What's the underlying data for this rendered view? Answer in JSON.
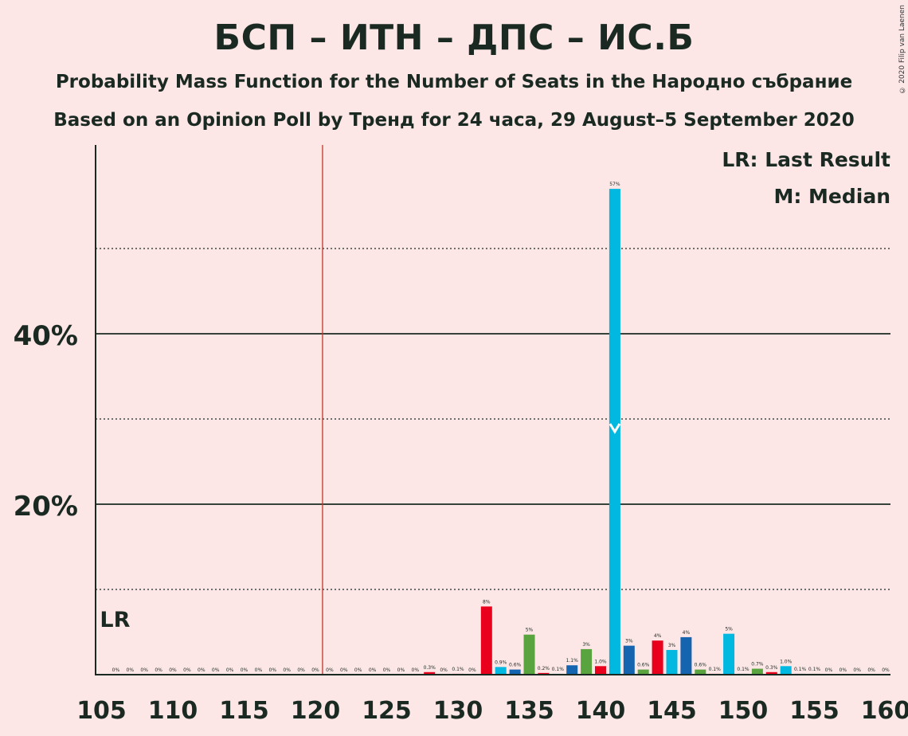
{
  "title": "БСП – ИТН – ДПС – ИС.Б",
  "subtitle1": "Probability Mass Function for the Number of Seats in the Народно събрание",
  "subtitle2": "Based on an Opinion Poll by Тренд for 24 часа, 29 August–5 September 2020",
  "copyright": "© 2020 Filip van Laenen",
  "legend": {
    "last_result": "LR: Last Result",
    "median": "M: Median"
  },
  "colors": {
    "background": "#fde6e6",
    "majority_line": "#c0392b",
    "axis": "#1a2a22",
    "series": [
      "#e8001c",
      "#00b8e0",
      "#1464b0",
      "#5aa440"
    ]
  },
  "chart_data": {
    "type": "bar",
    "xlabel": "",
    "ylabel": "",
    "xlim": [
      105,
      160
    ],
    "ylim": [
      0,
      62
    ],
    "x_ticks": [
      "105",
      "110",
      "115",
      "120",
      "125",
      "130",
      "135",
      "140",
      "145",
      "150",
      "155",
      "160"
    ],
    "y_ticks": [
      "20%",
      "40%"
    ],
    "y_tick_values": [
      20,
      40
    ],
    "solid_gridlines": [
      20,
      40
    ],
    "dotted_gridlines": [
      10,
      30,
      50
    ],
    "majority_line_x": 120.5,
    "last_result_seats": 106,
    "last_result_label": "LR",
    "median_seats": 141,
    "bars": [
      {
        "x": 106,
        "value": 0,
        "label": "0%",
        "color": "#e8001c"
      },
      {
        "x": 107,
        "value": 0,
        "label": "0%",
        "color": "#00b8e0"
      },
      {
        "x": 108,
        "value": 0,
        "label": "0%",
        "color": "#1464b0"
      },
      {
        "x": 109,
        "value": 0,
        "label": "0%",
        "color": "#5aa440"
      },
      {
        "x": 110,
        "value": 0,
        "label": "0%",
        "color": "#e8001c"
      },
      {
        "x": 111,
        "value": 0,
        "label": "0%",
        "color": "#00b8e0"
      },
      {
        "x": 112,
        "value": 0,
        "label": "0%",
        "color": "#1464b0"
      },
      {
        "x": 113,
        "value": 0,
        "label": "0%",
        "color": "#5aa440"
      },
      {
        "x": 114,
        "value": 0,
        "label": "0%",
        "color": "#e8001c"
      },
      {
        "x": 115,
        "value": 0,
        "label": "0%",
        "color": "#00b8e0"
      },
      {
        "x": 116,
        "value": 0,
        "label": "0%",
        "color": "#1464b0"
      },
      {
        "x": 117,
        "value": 0,
        "label": "0%",
        "color": "#5aa440"
      },
      {
        "x": 118,
        "value": 0,
        "label": "0%",
        "color": "#e8001c"
      },
      {
        "x": 119,
        "value": 0,
        "label": "0%",
        "color": "#00b8e0"
      },
      {
        "x": 120,
        "value": 0,
        "label": "0%",
        "color": "#1464b0"
      },
      {
        "x": 121,
        "value": 0,
        "label": "0%",
        "color": "#5aa440"
      },
      {
        "x": 122,
        "value": 0,
        "label": "0%",
        "color": "#e8001c"
      },
      {
        "x": 123,
        "value": 0,
        "label": "0%",
        "color": "#00b8e0"
      },
      {
        "x": 124,
        "value": 0,
        "label": "0%",
        "color": "#1464b0"
      },
      {
        "x": 125,
        "value": 0,
        "label": "0%",
        "color": "#5aa440"
      },
      {
        "x": 126,
        "value": 0,
        "label": "0%",
        "color": "#e8001c"
      },
      {
        "x": 127,
        "value": 0,
        "label": "0%",
        "color": "#00b8e0"
      },
      {
        "x": 128,
        "value": 0.3,
        "label": "0.3%",
        "color": "#e8001c"
      },
      {
        "x": 129,
        "value": 0,
        "label": "0%",
        "color": "#5aa440"
      },
      {
        "x": 130,
        "value": 0.1,
        "label": "0.1%",
        "color": "#e8001c"
      },
      {
        "x": 131,
        "value": 0,
        "label": "0%",
        "color": "#00b8e0"
      },
      {
        "x": 132,
        "value": 8,
        "label": "8%",
        "color": "#e8001c"
      },
      {
        "x": 133,
        "value": 0.9,
        "label": "0.9%",
        "color": "#00b8e0"
      },
      {
        "x": 134,
        "value": 0.6,
        "label": "0.6%",
        "color": "#1464b0"
      },
      {
        "x": 135,
        "value": 4.7,
        "label": "5%",
        "color": "#5aa440"
      },
      {
        "x": 136,
        "value": 0.2,
        "label": "0.2%",
        "color": "#e8001c"
      },
      {
        "x": 137,
        "value": 0.1,
        "label": "0.1%",
        "color": "#00b8e0"
      },
      {
        "x": 138,
        "value": 1.1,
        "label": "1.1%",
        "color": "#1464b0"
      },
      {
        "x": 139,
        "value": 3,
        "label": "3%",
        "color": "#5aa440"
      },
      {
        "x": 140,
        "value": 1.0,
        "label": "1.0%",
        "color": "#e8001c"
      },
      {
        "x": 141,
        "value": 57,
        "label": "57%",
        "color": "#00b8e0"
      },
      {
        "x": 142,
        "value": 3.4,
        "label": "3%",
        "color": "#1464b0"
      },
      {
        "x": 143,
        "value": 0.6,
        "label": "0.6%",
        "color": "#5aa440"
      },
      {
        "x": 144,
        "value": 4,
        "label": "4%",
        "color": "#e8001c"
      },
      {
        "x": 145,
        "value": 2.9,
        "label": "3%",
        "color": "#00b8e0"
      },
      {
        "x": 146,
        "value": 4.4,
        "label": "4%",
        "color": "#1464b0"
      },
      {
        "x": 147,
        "value": 0.6,
        "label": "0.6%",
        "color": "#5aa440"
      },
      {
        "x": 148,
        "value": 0.1,
        "label": "0.1%",
        "color": "#e8001c"
      },
      {
        "x": 149,
        "value": 4.8,
        "label": "5%",
        "color": "#00b8e0"
      },
      {
        "x": 150,
        "value": 0.1,
        "label": "0.1%",
        "color": "#1464b0"
      },
      {
        "x": 151,
        "value": 0.7,
        "label": "0.7%",
        "color": "#5aa440"
      },
      {
        "x": 152,
        "value": 0.3,
        "label": "0.3%",
        "color": "#e8001c"
      },
      {
        "x": 153,
        "value": 1.0,
        "label": "1.0%",
        "color": "#00b8e0"
      },
      {
        "x": 154,
        "value": 0.1,
        "label": "0.1%",
        "color": "#1464b0"
      },
      {
        "x": 155,
        "value": 0.1,
        "label": "0.1%",
        "color": "#5aa440"
      },
      {
        "x": 156,
        "value": 0,
        "label": "0%",
        "color": "#e8001c"
      },
      {
        "x": 157,
        "value": 0,
        "label": "0%",
        "color": "#00b8e0"
      },
      {
        "x": 158,
        "value": 0,
        "label": "0%",
        "color": "#1464b0"
      },
      {
        "x": 159,
        "value": 0,
        "label": "0%",
        "color": "#5aa440"
      },
      {
        "x": 160,
        "value": 0,
        "label": "0%",
        "color": "#e8001c"
      }
    ]
  }
}
